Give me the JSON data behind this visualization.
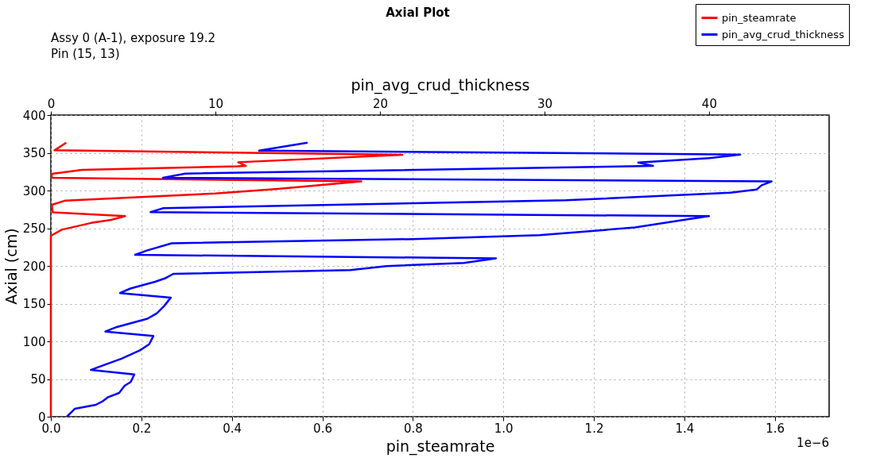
{
  "chart_data": {
    "type": "line",
    "title": "Axial Plot",
    "subtitle": "Assy 0 (A-1), exposure 19.2\nPin (15, 13)",
    "xlabel": "pin_steamrate",
    "x2label": "pin_avg_crud_thickness",
    "ylabel": "Axial (cm)",
    "xlim": [
      0,
      1.72
    ],
    "xticks": [
      {
        "value": 0,
        "label": "0.0"
      },
      0.2,
      0.4,
      0.6,
      0.8,
      {
        "value": 1,
        "label": "1.0"
      },
      1.2,
      1.4,
      1.6
    ],
    "x2lim": [
      0,
      47.3
    ],
    "x2ticks": [
      0,
      10,
      20,
      30,
      40
    ],
    "ylim": [
      0,
      400
    ],
    "yticks": [
      0,
      50,
      100,
      150,
      200,
      250,
      300,
      350,
      400
    ],
    "grid": true,
    "legend": "top right",
    "line_style": "solid",
    "marker": "none",
    "annotations": [
      "1e−6"
    ],
    "series": [
      {
        "name": "pin_steamrate",
        "color": "#ff0000",
        "x": [
          0,
          0,
          0.024,
          0.089,
          0.133,
          0.164,
          0.004,
          0.002,
          0.032,
          0.363,
          0.501,
          0.686,
          0.002,
          0.002,
          0.069,
          0.413,
          0.431,
          0.414,
          0.777,
          0.008,
          0.034
        ],
        "values": [
          0,
          240,
          248,
          257,
          261,
          266,
          271,
          281,
          286.7,
          296,
          302,
          312,
          316.8,
          322,
          327.4,
          332,
          332.6,
          337.5,
          347.4,
          353.3,
          363.4
        ]
      },
      {
        "name": "pin_avg_crud_thickness",
        "color": "#0000ff",
        "axis": "x2",
        "x": [
          0.97,
          1.45,
          2.73,
          3.18,
          3.48,
          4.15,
          4.48,
          4.85,
          5.07,
          2.43,
          2.9,
          4.29,
          5.41,
          5.97,
          6.23,
          3.31,
          4.01,
          5.87,
          6.43,
          6.89,
          7.29,
          4.2,
          4.83,
          6.33,
          6.99,
          7.44,
          18.2,
          20.4,
          25.1,
          27.05,
          5.12,
          5.87,
          7.34,
          22.0,
          29.7,
          35.5,
          38.7,
          40.0,
          6.06,
          6.81,
          31.3,
          41.3,
          42.9,
          43.2,
          43.8,
          6.81,
          8.16,
          36.6,
          35.7,
          40.0,
          41.9,
          12.65,
          15.6
        ],
        "values": [
          0,
          10.5,
          15.8,
          21,
          26,
          31.6,
          41,
          46,
          56,
          62,
          66,
          77,
          88,
          96,
          107,
          113,
          119,
          130,
          137,
          147,
          158,
          164,
          170,
          179,
          184,
          189.5,
          194.4,
          199.7,
          204,
          210,
          214.7,
          220.7,
          230,
          235.6,
          240.7,
          251,
          261.8,
          266,
          271.3,
          276.5,
          287,
          297,
          301.4,
          307,
          312,
          316.8,
          322.4,
          332.6,
          337,
          343,
          347.7,
          352.8,
          363.4
        ]
      }
    ]
  }
}
